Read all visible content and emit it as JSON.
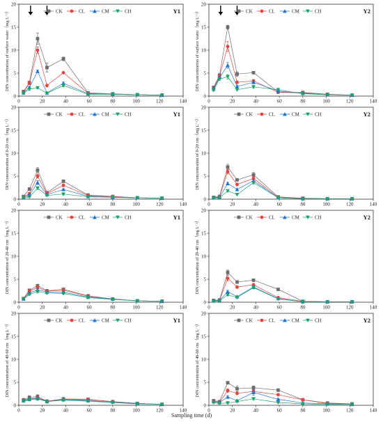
{
  "xlabel": "Sampling time (d)",
  "x_ticks": [
    0,
    20,
    40,
    60,
    80,
    100,
    120,
    140
  ],
  "y_ticks": [
    0,
    5,
    10,
    15,
    20
  ],
  "legend": [
    "CK",
    "CL",
    "CM",
    "CH"
  ],
  "series_colors": {
    "CK": "#6d6d6d",
    "CL": "#e8423f",
    "CM": "#1f74d4",
    "CH": "#1aa36b"
  },
  "markers": {
    "CK": "square",
    "CL": "circle",
    "CM": "triangle-up",
    "CH": "triangle-down"
  },
  "chart_data": [
    {
      "type": "line",
      "panel": "Y1",
      "ylabel": "DIN concentration of surface water（mg L⁻¹）",
      "xlim": [
        0,
        140
      ],
      "ylim": [
        0,
        20
      ],
      "arrows_x": [
        10,
        24
      ],
      "x": [
        4,
        9,
        16,
        24,
        38,
        59,
        80,
        101,
        122
      ],
      "series": [
        {
          "name": "CK",
          "values": [
            1.0,
            2.9,
            12.5,
            6.2,
            8.1,
            0.7,
            0.5,
            0.3,
            0.2
          ],
          "errors": [
            0.3,
            0.4,
            1.2,
            1.0,
            0.4,
            0.1,
            0.1,
            0.1,
            0.05
          ]
        },
        {
          "name": "CL",
          "values": [
            0.8,
            2.8,
            10.0,
            2.3,
            5.1,
            0.6,
            0.4,
            0.3,
            0.2
          ],
          "errors": [
            0.2,
            0.3,
            0.7,
            0.3,
            0.2,
            0.1,
            0.1,
            0.1,
            0.05
          ]
        },
        {
          "name": "CM",
          "values": [
            0.7,
            1.9,
            5.4,
            0.7,
            2.8,
            0.5,
            0.4,
            0.3,
            0.2
          ],
          "errors": [
            0.2,
            0.2,
            0.3,
            0.1,
            0.3,
            0.1,
            0.1,
            0.1,
            0.05
          ]
        },
        {
          "name": "CH",
          "values": [
            0.6,
            1.5,
            1.8,
            0.6,
            2.3,
            0.4,
            0.4,
            0.3,
            0.2
          ],
          "errors": [
            0.1,
            0.2,
            0.2,
            0.1,
            0.3,
            0.1,
            0.1,
            0.1,
            0.05
          ]
        }
      ]
    },
    {
      "type": "line",
      "panel": "Y2",
      "ylabel": "DIN concentration of surface water（mg L⁻¹）",
      "xlim": [
        0,
        140
      ],
      "ylim": [
        0,
        20
      ],
      "arrows_x": [
        10,
        24
      ],
      "x": [
        4,
        9,
        16,
        24,
        38,
        59,
        80,
        101,
        122
      ],
      "series": [
        {
          "name": "CK",
          "values": [
            1.9,
            4.5,
            15.0,
            4.8,
            5.1,
            0.9,
            0.8,
            0.4,
            0.2
          ],
          "errors": [
            0.3,
            0.4,
            0.4,
            0.5,
            0.3,
            0.1,
            0.1,
            0.1,
            0.05
          ]
        },
        {
          "name": "CL",
          "values": [
            1.7,
            4.3,
            10.8,
            3.0,
            3.3,
            0.8,
            0.7,
            0.4,
            0.2
          ],
          "errors": [
            0.3,
            0.4,
            1.1,
            0.3,
            0.3,
            0.1,
            0.1,
            0.1,
            0.05
          ]
        },
        {
          "name": "CM",
          "values": [
            1.6,
            4.0,
            6.7,
            2.1,
            3.0,
            1.1,
            0.6,
            0.3,
            0.2
          ],
          "errors": [
            0.3,
            0.3,
            0.6,
            0.3,
            0.3,
            0.1,
            0.1,
            0.1,
            0.05
          ]
        },
        {
          "name": "CH",
          "values": [
            1.3,
            3.7,
            4.2,
            1.4,
            2.0,
            1.4,
            0.5,
            0.3,
            0.2
          ],
          "errors": [
            0.2,
            0.3,
            0.5,
            0.2,
            0.3,
            0.1,
            0.1,
            0.1,
            0.05
          ]
        }
      ]
    },
    {
      "type": "line",
      "panel": "Y1",
      "ylabel": "DIN concentration of 0-20 cm（mg L⁻¹）",
      "xlim": [
        0,
        140
      ],
      "ylim": [
        0,
        20
      ],
      "x": [
        4,
        9,
        16,
        24,
        38,
        59,
        80,
        101,
        122
      ],
      "series": [
        {
          "name": "CK",
          "values": [
            0.6,
            2.2,
            6.3,
            1.4,
            3.9,
            0.9,
            0.6,
            0.3,
            0.2
          ],
          "errors": [
            0.1,
            0.2,
            0.6,
            0.2,
            0.3,
            0.1,
            0.1,
            0.1,
            0.05
          ]
        },
        {
          "name": "CL",
          "values": [
            0.5,
            1.2,
            5.0,
            1.2,
            3.0,
            0.8,
            0.5,
            0.3,
            0.2
          ],
          "errors": [
            0.1,
            0.2,
            0.4,
            0.2,
            0.3,
            0.1,
            0.1,
            0.1,
            0.05
          ]
        },
        {
          "name": "CM",
          "values": [
            0.4,
            0.9,
            3.6,
            1.0,
            2.1,
            0.6,
            0.4,
            0.3,
            0.2
          ],
          "errors": [
            0.1,
            0.1,
            0.4,
            0.1,
            0.2,
            0.1,
            0.1,
            0.1,
            0.05
          ]
        },
        {
          "name": "CH",
          "values": [
            0.3,
            0.5,
            2.4,
            0.8,
            1.1,
            0.5,
            0.4,
            0.3,
            0.2
          ],
          "errors": [
            0.1,
            0.1,
            0.3,
            0.1,
            0.2,
            0.1,
            0.1,
            0.1,
            0.05
          ]
        }
      ]
    },
    {
      "type": "line",
      "panel": "Y2",
      "ylabel": "DIN concentration of 0-20 cm（mg L⁻¹）",
      "xlim": [
        0,
        140
      ],
      "ylim": [
        0,
        20
      ],
      "x": [
        4,
        9,
        16,
        24,
        38,
        59,
        80,
        101,
        122
      ],
      "series": [
        {
          "name": "CK",
          "values": [
            0.4,
            0.6,
            7.0,
            4.2,
            5.3,
            0.5,
            0.2,
            0.1,
            0.1
          ],
          "errors": [
            0.1,
            0.1,
            0.6,
            0.3,
            0.5,
            0.1,
            0.05,
            0.05,
            0.05
          ]
        },
        {
          "name": "CL",
          "values": [
            0.3,
            0.5,
            6.0,
            3.2,
            4.5,
            0.4,
            0.2,
            0.1,
            0.1
          ],
          "errors": [
            0.1,
            0.1,
            0.5,
            0.3,
            0.4,
            0.1,
            0.05,
            0.05,
            0.05
          ]
        },
        {
          "name": "CM",
          "values": [
            0.3,
            0.4,
            3.4,
            2.1,
            4.0,
            0.3,
            0.1,
            0.1,
            0.1
          ],
          "errors": [
            0.1,
            0.1,
            0.3,
            0.2,
            0.3,
            0.1,
            0.05,
            0.05,
            0.05
          ]
        },
        {
          "name": "CH",
          "values": [
            0.2,
            0.3,
            1.8,
            1.0,
            3.6,
            0.3,
            0.1,
            0.1,
            0.1
          ],
          "errors": [
            0.1,
            0.1,
            0.2,
            0.1,
            0.3,
            0.1,
            0.05,
            0.05,
            0.05
          ]
        }
      ]
    },
    {
      "type": "line",
      "panel": "Y1",
      "ylabel": "DIN concentration of 20-40 cm（mg L⁻¹）",
      "xlim": [
        0,
        140
      ],
      "ylim": [
        0,
        20
      ],
      "x": [
        4,
        9,
        16,
        24,
        38,
        59,
        80,
        101,
        122
      ],
      "series": [
        {
          "name": "CK",
          "values": [
            0.8,
            2.6,
            3.6,
            2.5,
            2.8,
            1.4,
            0.7,
            0.3,
            0.2
          ],
          "errors": [
            0.1,
            0.3,
            0.3,
            0.2,
            0.3,
            0.1,
            0.1,
            0.1,
            0.05
          ]
        },
        {
          "name": "CL",
          "values": [
            0.8,
            2.4,
            3.2,
            2.4,
            2.6,
            1.3,
            0.7,
            0.3,
            0.2
          ],
          "errors": [
            0.1,
            0.3,
            0.3,
            0.2,
            0.3,
            0.1,
            0.1,
            0.1,
            0.05
          ]
        },
        {
          "name": "CM",
          "values": [
            0.7,
            2.0,
            2.7,
            2.2,
            2.2,
            1.1,
            0.7,
            0.3,
            0.2
          ],
          "errors": [
            0.1,
            0.2,
            0.3,
            0.2,
            0.2,
            0.1,
            0.1,
            0.1,
            0.05
          ]
        },
        {
          "name": "CH",
          "values": [
            0.7,
            1.7,
            2.3,
            2.0,
            1.9,
            1.0,
            0.6,
            0.3,
            0.2
          ],
          "errors": [
            0.1,
            0.2,
            0.2,
            0.2,
            0.2,
            0.1,
            0.1,
            0.1,
            0.05
          ]
        }
      ]
    },
    {
      "type": "line",
      "panel": "Y2",
      "ylabel": "DIN concentration of 20-40 cm（mg L⁻¹）",
      "xlim": [
        0,
        140
      ],
      "ylim": [
        0,
        20
      ],
      "x": [
        4,
        9,
        16,
        24,
        38,
        59,
        80,
        101,
        122
      ],
      "series": [
        {
          "name": "CK",
          "values": [
            0.4,
            0.5,
            6.5,
            4.4,
            4.8,
            2.8,
            0.2,
            0.1,
            0.1
          ],
          "errors": [
            0.1,
            0.1,
            0.5,
            0.3,
            0.3,
            0.2,
            0.05,
            0.05,
            0.05
          ]
        },
        {
          "name": "CL",
          "values": [
            0.3,
            0.4,
            5.2,
            3.3,
            3.8,
            1.0,
            0.2,
            0.1,
            0.1
          ],
          "errors": [
            0.1,
            0.1,
            0.6,
            0.3,
            0.3,
            0.1,
            0.05,
            0.05,
            0.05
          ]
        },
        {
          "name": "CM",
          "values": [
            0.3,
            0.4,
            2.3,
            1.2,
            3.3,
            0.8,
            0.1,
            0.1,
            0.1
          ],
          "errors": [
            0.1,
            0.1,
            0.3,
            0.2,
            0.3,
            0.1,
            0.05,
            0.05,
            0.05
          ]
        },
        {
          "name": "CH",
          "values": [
            0.2,
            0.3,
            1.6,
            1.0,
            3.2,
            0.7,
            0.1,
            0.1,
            0.1
          ],
          "errors": [
            0.1,
            0.1,
            0.2,
            0.1,
            0.3,
            0.1,
            0.05,
            0.05,
            0.05
          ]
        }
      ]
    },
    {
      "type": "line",
      "panel": "Y1",
      "ylabel": "DIN concentration of 40-60 cm（mg L⁻¹）",
      "xlim": [
        0,
        140
      ],
      "ylim": [
        0,
        20
      ],
      "x": [
        4,
        9,
        16,
        24,
        38,
        59,
        80,
        101,
        122
      ],
      "series": [
        {
          "name": "CK",
          "values": [
            1.2,
            1.7,
            1.9,
            0.9,
            1.4,
            1.3,
            0.8,
            0.4,
            0.2
          ],
          "errors": [
            0.2,
            0.4,
            0.4,
            0.1,
            0.3,
            0.3,
            0.1,
            0.1,
            0.05
          ]
        },
        {
          "name": "CL",
          "values": [
            1.1,
            1.4,
            1.6,
            0.9,
            1.3,
            1.2,
            0.8,
            0.4,
            0.2
          ],
          "errors": [
            0.2,
            0.3,
            0.3,
            0.1,
            0.2,
            0.2,
            0.1,
            0.1,
            0.05
          ]
        },
        {
          "name": "CM",
          "values": [
            1.0,
            1.3,
            1.5,
            0.8,
            1.2,
            1.0,
            0.7,
            0.4,
            0.2
          ],
          "errors": [
            0.2,
            0.3,
            0.3,
            0.1,
            0.2,
            0.2,
            0.1,
            0.1,
            0.05
          ]
        },
        {
          "name": "CH",
          "values": [
            0.9,
            1.2,
            1.4,
            0.8,
            1.1,
            0.9,
            0.6,
            0.3,
            0.2
          ],
          "errors": [
            0.2,
            0.2,
            0.3,
            0.1,
            0.2,
            0.2,
            0.1,
            0.1,
            0.05
          ]
        }
      ]
    },
    {
      "type": "line",
      "panel": "Y2",
      "ylabel": "DIN concentration of 40-60 cm（mg L⁻¹）",
      "xlim": [
        0,
        140
      ],
      "ylim": [
        0,
        20
      ],
      "x": [
        4,
        9,
        16,
        24,
        38,
        59,
        80,
        101,
        122
      ],
      "series": [
        {
          "name": "CK",
          "values": [
            1.0,
            0.8,
            4.9,
            3.6,
            3.8,
            3.3,
            1.2,
            0.5,
            0.3
          ],
          "errors": [
            0.1,
            0.1,
            0.3,
            0.6,
            0.4,
            0.3,
            0.1,
            0.1,
            0.05
          ]
        },
        {
          "name": "CL",
          "values": [
            0.9,
            0.6,
            3.2,
            2.6,
            3.0,
            2.3,
            1.2,
            0.4,
            0.3
          ],
          "errors": [
            0.1,
            0.1,
            0.4,
            0.3,
            0.3,
            0.2,
            0.1,
            0.1,
            0.05
          ]
        },
        {
          "name": "CM",
          "values": [
            0.8,
            0.6,
            1.8,
            1.0,
            2.8,
            1.3,
            0.5,
            0.3,
            0.2
          ],
          "errors": [
            0.1,
            0.1,
            0.3,
            0.2,
            0.6,
            0.2,
            0.1,
            0.1,
            0.05
          ]
        },
        {
          "name": "CH",
          "values": [
            0.6,
            0.4,
            0.5,
            0.8,
            1.4,
            0.6,
            0.3,
            0.2,
            0.2
          ],
          "errors": [
            0.1,
            0.1,
            0.1,
            0.1,
            0.2,
            0.1,
            0.05,
            0.05,
            0.05
          ]
        }
      ]
    }
  ]
}
